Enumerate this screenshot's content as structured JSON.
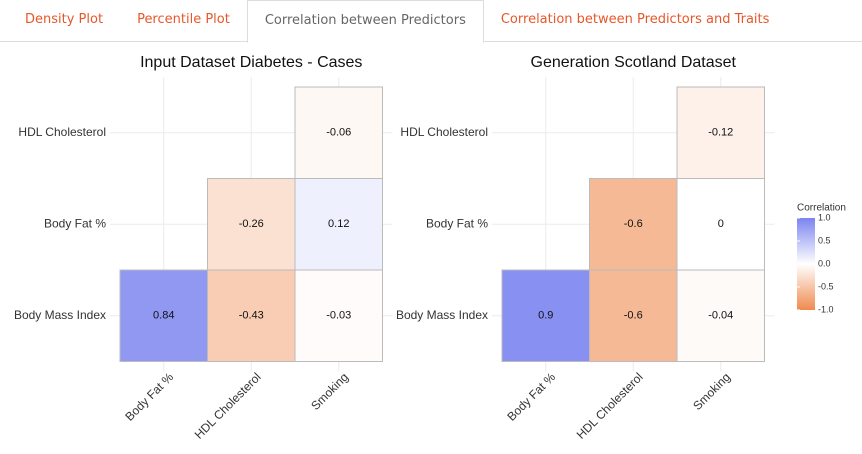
{
  "tabs": [
    "Density Plot",
    "Percentile Plot",
    "Correlation between Predictors",
    "Correlation between Predictors and Traits"
  ],
  "active_tab": 2,
  "chart_data": [
    {
      "type": "heatmap",
      "title": "Input Dataset Diabetes - Cases",
      "x_categories": [
        "Body Fat %",
        "HDL Cholesterol",
        "Smoking"
      ],
      "y_categories": [
        "HDL Cholesterol",
        "Body Fat %",
        "Body Mass Index"
      ],
      "values": [
        [
          null,
          null,
          -0.06
        ],
        [
          null,
          -0.26,
          0.12
        ],
        [
          0.84,
          -0.43,
          -0.03
        ]
      ]
    },
    {
      "type": "heatmap",
      "title": "Generation Scotland Dataset",
      "x_categories": [
        "Body Fat %",
        "HDL Cholesterol",
        "Smoking"
      ],
      "y_categories": [
        "HDL Cholesterol",
        "Body Fat %",
        "Body Mass Index"
      ],
      "values": [
        [
          null,
          null,
          -0.12
        ],
        [
          null,
          -0.6,
          0
        ],
        [
          0.9,
          -0.6,
          -0.04
        ]
      ]
    }
  ],
  "colorbar": {
    "title": "Correlation",
    "clim": [
      -1,
      1
    ],
    "ticks": [
      {
        "value": 1,
        "label": "1.0"
      },
      0.5,
      {
        "value": 0,
        "label": "0.0"
      },
      -0.5,
      {
        "value": -1,
        "label": "-1.0"
      }
    ],
    "colors": {
      "low": "#ef8a4f",
      "mid": "#ffffff",
      "high": "#7b84f0"
    }
  }
}
